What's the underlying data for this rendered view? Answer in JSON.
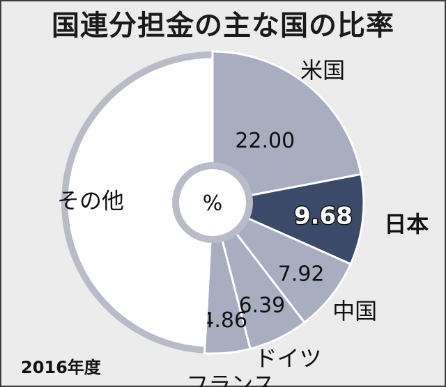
{
  "title": "国連分担金の主な国の比率",
  "footnote": "2016年度",
  "colors": {
    "background": "#ececec",
    "slice_gray": "#a9adc0",
    "slice_japan": "#3c4a6a",
    "slice_other": "#ffffff",
    "ring": "#b9bcc8",
    "separator": "#ffffff"
  },
  "chart_data": {
    "type": "pie",
    "donut": true,
    "center_label": "%",
    "slices": [
      {
        "label": "米国",
        "value": 22.0,
        "value_label": "22.00",
        "highlight": false
      },
      {
        "label": "日本",
        "value": 9.68,
        "value_label": "9.68",
        "highlight": true
      },
      {
        "label": "中国",
        "value": 7.92,
        "value_label": "7.92",
        "highlight": false
      },
      {
        "label": "ドイツ",
        "value": 6.39,
        "value_label": "6.39",
        "highlight": false
      },
      {
        "label": "フランス",
        "value": 4.86,
        "value_label": "4.86",
        "highlight": false
      },
      {
        "label": "その他",
        "value": 49.15,
        "value_label": "",
        "highlight": false
      }
    ]
  }
}
